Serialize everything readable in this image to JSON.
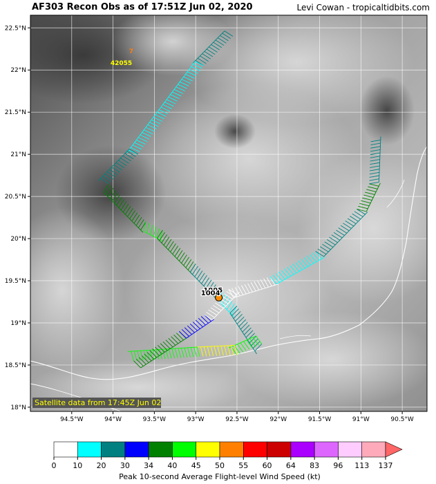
{
  "header": {
    "title": "AF303 Recon Obs as of 17:51Z Jun 02, 2020",
    "credit": "Levi Cowan - tropicaltidbits.com"
  },
  "map": {
    "lon_range": [
      -95.0,
      -90.2
    ],
    "lat_range": [
      17.95,
      22.65
    ],
    "lon_ticks": [
      -94.5,
      -94,
      -93.5,
      -93,
      -92.5,
      -92,
      -91.5,
      -91,
      -90.5
    ],
    "lon_labels": [
      "94.5°W",
      "94°W",
      "93.5°W",
      "93°W",
      "92.5°W",
      "92°W",
      "91.5°W",
      "91°W",
      "90.5°W"
    ],
    "lat_ticks": [
      18,
      18.5,
      19,
      19.5,
      20,
      20.5,
      21,
      21.5,
      22,
      22.5
    ],
    "lat_labels": [
      "18°N",
      "18.5°N",
      "19°N",
      "19.5°N",
      "20°N",
      "20.5°N",
      "21°N",
      "21.5°N",
      "22°N",
      "22.5°N"
    ],
    "satellite_note": "Satellite data from 17:45Z Jun 02",
    "colors": {
      "grid": "#ffffff",
      "coastline": "#ffffff",
      "satellite_note_bg": "#555555",
      "satellite_note_text": "#ffff00"
    },
    "annotations": [
      {
        "id": "pressure-1005",
        "text": "1005",
        "lon": -92.79,
        "lat": 19.36,
        "color": "#000000"
      },
      {
        "id": "pressure-1004",
        "text": "1004",
        "lon": -92.82,
        "lat": 19.33,
        "color": "#000000"
      },
      {
        "id": "dropsonde-id",
        "text": "42055",
        "lon": -93.9,
        "lat": 22.06,
        "color": "#ffff00"
      },
      {
        "id": "wind-7",
        "text": "7",
        "lon": -93.78,
        "lat": 22.2,
        "color": "#ff7f0e"
      }
    ],
    "center_fix": {
      "lon": -92.72,
      "lat": 19.3,
      "color": "#ff8c00"
    },
    "flight_track": [
      {
        "from": [
          -92.55,
          22.4
        ],
        "to": [
          -92.9,
          22.05
        ],
        "band": "20-30"
      },
      {
        "from": [
          -92.9,
          22.05
        ],
        "to": [
          -93.7,
          21.0
        ],
        "band": "10-20"
      },
      {
        "from": [
          -93.7,
          21.0
        ],
        "to": [
          -94.05,
          20.65
        ],
        "band": "20-30"
      },
      {
        "from": [
          -94.05,
          20.65
        ],
        "to": [
          -93.6,
          20.2
        ],
        "band": "34-40"
      },
      {
        "from": [
          -93.6,
          20.2
        ],
        "to": [
          -93.4,
          20.1
        ],
        "band": "40-45"
      },
      {
        "from": [
          -93.4,
          20.1
        ],
        "to": [
          -93.0,
          19.7
        ],
        "band": "34-40"
      },
      {
        "from": [
          -93.0,
          19.7
        ],
        "to": [
          -92.7,
          19.4
        ],
        "band": "20-30"
      },
      {
        "from": [
          -92.7,
          19.4
        ],
        "to": [
          -92.5,
          19.2
        ],
        "band": "10-20"
      },
      {
        "from": [
          -92.5,
          19.2
        ],
        "to": [
          -92.2,
          18.75
        ],
        "band": "20-30"
      },
      {
        "from": [
          -92.2,
          18.75
        ],
        "to": [
          -92.5,
          18.62
        ],
        "band": "40-45"
      },
      {
        "from": [
          -92.5,
          18.62
        ],
        "to": [
          -92.95,
          18.6
        ],
        "band": "45-50"
      },
      {
        "from": [
          -92.95,
          18.6
        ],
        "to": [
          -93.75,
          18.55
        ],
        "band": "40-45"
      },
      {
        "from": [
          -93.75,
          18.55
        ],
        "to": [
          -93.2,
          18.9
        ],
        "band": "34-40"
      },
      {
        "from": [
          -93.2,
          18.9
        ],
        "to": [
          -92.9,
          19.1
        ],
        "band": "30-34"
      },
      {
        "from": [
          -92.9,
          19.1
        ],
        "to": [
          -92.6,
          19.4
        ],
        "band": "0-10"
      },
      {
        "from": [
          -92.6,
          19.4
        ],
        "to": [
          -92.1,
          19.55
        ],
        "band": "0-10"
      },
      {
        "from": [
          -92.1,
          19.55
        ],
        "to": [
          -91.55,
          19.85
        ],
        "band": "10-20"
      },
      {
        "from": [
          -91.55,
          19.85
        ],
        "to": [
          -91.05,
          20.35
        ],
        "band": "20-30"
      },
      {
        "from": [
          -91.05,
          20.35
        ],
        "to": [
          -90.9,
          20.65
        ],
        "band": "34-40"
      },
      {
        "from": [
          -90.9,
          20.65
        ],
        "to": [
          -90.88,
          21.15
        ],
        "band": "20-30"
      }
    ]
  },
  "colorbar": {
    "title": "Peak 10-second Average Flight-level Wind Speed (kt)",
    "ticks": [
      "0",
      "10",
      "20",
      "30",
      "34",
      "40",
      "45",
      "50",
      "55",
      "60",
      "64",
      "83",
      "96",
      "113",
      "137"
    ],
    "colors": [
      "#ffffff",
      "#00ffff",
      "#008080",
      "#0000ff",
      "#008000",
      "#00ff00",
      "#ffff00",
      "#ff8000",
      "#ff0000",
      "#cc0000",
      "#aa00ff",
      "#dd66ff",
      "#ffccff",
      "#ffaabb",
      "#ff6666"
    ],
    "bands": {
      "0-10": "#ffffff",
      "10-20": "#00ffff",
      "20-30": "#008080",
      "30-34": "#0000ff",
      "34-40": "#008000",
      "40-45": "#00ff00",
      "45-50": "#ffff00"
    }
  }
}
